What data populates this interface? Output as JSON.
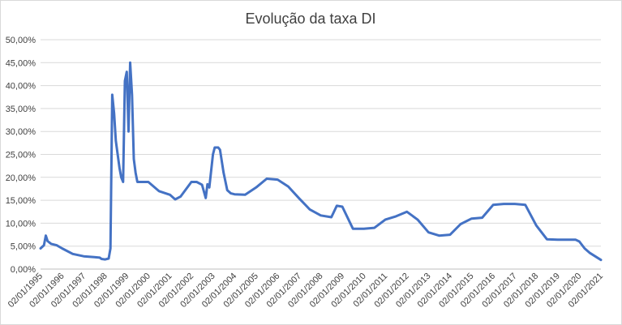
{
  "chart_data": {
    "type": "line",
    "title": "Evolução da taxa DI",
    "xlabel": "",
    "ylabel": "",
    "ylim": [
      0,
      0.5
    ],
    "yticks": [
      0,
      0.05,
      0.1,
      0.15,
      0.2,
      0.25,
      0.3,
      0.35,
      0.4,
      0.45,
      0.5
    ],
    "ytick_labels": [
      "0,00%",
      "5,00%",
      "10,00%",
      "15,00%",
      "20,00%",
      "25,00%",
      "30,00%",
      "35,00%",
      "40,00%",
      "45,00%",
      "50,00%"
    ],
    "xlim": [
      "1995-01-02",
      "2021-01-02"
    ],
    "x_tick_dates": [
      "1995-01-02",
      "1996-01-02",
      "1997-01-02",
      "1998-01-02",
      "1999-01-02",
      "2000-01-02",
      "2001-01-02",
      "2002-01-02",
      "2003-01-02",
      "2004-01-02",
      "2005-01-02",
      "2006-01-02",
      "2007-01-02",
      "2008-01-02",
      "2009-01-02",
      "2010-01-02",
      "2011-01-02",
      "2012-01-02",
      "2013-01-02",
      "2014-01-02",
      "2015-01-02",
      "2016-01-02",
      "2017-01-02",
      "2018-01-02",
      "2019-01-02",
      "2020-01-02",
      "2021-01-02"
    ],
    "x_tick_labels": [
      "02/01/1995",
      "02/01/1996",
      "02/01/1997",
      "02/01/1998",
      "02/01/1999",
      "02/01/2000",
      "02/01/2001",
      "02/01/2002",
      "02/01/2003",
      "02/01/2004",
      "02/01/2005",
      "02/01/2006",
      "02/01/2007",
      "02/01/2008",
      "02/01/2009",
      "02/01/2010",
      "02/01/2011",
      "02/01/2012",
      "02/01/2013",
      "02/01/2014",
      "02/01/2015",
      "02/01/2016",
      "02/01/2017",
      "02/01/2018",
      "02/01/2019",
      "02/01/2020",
      "02/01/2021"
    ],
    "grid": true,
    "series": [
      {
        "color": "#4472c4",
        "x": [
          "1995-01-02",
          "1995-03-01",
          "1995-04-01",
          "1995-05-01",
          "1995-06-01",
          "1995-07-01",
          "1995-10-01",
          "1996-01-02",
          "1996-07-01",
          "1997-01-02",
          "1997-07-01",
          "1997-10-01",
          "1997-11-01",
          "1998-01-02",
          "1998-03-01",
          "1998-04-01",
          "1998-05-01",
          "1998-06-01",
          "1998-07-01",
          "1998-09-01",
          "1998-10-01",
          "1998-11-01",
          "1998-12-01",
          "1999-01-02",
          "1999-02-01",
          "1999-03-01",
          "1999-04-01",
          "1999-05-01",
          "1999-06-01",
          "1999-07-01",
          "1999-10-01",
          "2000-01-02",
          "2000-07-01",
          "2001-01-02",
          "2001-04-01",
          "2001-07-01",
          "2002-01-02",
          "2002-04-01",
          "2002-07-01",
          "2002-09-01",
          "2002-10-01",
          "2002-11-01",
          "2003-01-02",
          "2003-02-01",
          "2003-04-01",
          "2003-05-01",
          "2003-07-01",
          "2003-09-01",
          "2003-11-01",
          "2004-01-02",
          "2004-07-01",
          "2005-01-02",
          "2005-07-01",
          "2006-01-02",
          "2006-07-01",
          "2007-01-02",
          "2007-07-01",
          "2008-01-02",
          "2008-07-01",
          "2008-10-01",
          "2009-01-02",
          "2009-07-01",
          "2010-01-02",
          "2010-07-01",
          "2011-01-02",
          "2011-07-01",
          "2012-01-02",
          "2012-07-01",
          "2013-01-02",
          "2013-07-01",
          "2014-01-02",
          "2014-07-01",
          "2015-01-02",
          "2015-07-01",
          "2016-01-02",
          "2016-07-01",
          "2017-01-02",
          "2017-07-01",
          "2018-01-02",
          "2018-07-01",
          "2019-01-02",
          "2019-07-01",
          "2019-11-01",
          "2020-01-02",
          "2020-04-01",
          "2020-07-01",
          "2021-01-02"
        ],
        "y": [
          0.045,
          0.052,
          0.073,
          0.061,
          0.058,
          0.055,
          0.052,
          0.045,
          0.033,
          0.028,
          0.026,
          0.025,
          0.022,
          0.021,
          0.023,
          0.045,
          0.38,
          0.34,
          0.28,
          0.22,
          0.2,
          0.19,
          0.41,
          0.43,
          0.3,
          0.45,
          0.38,
          0.24,
          0.21,
          0.19,
          0.19,
          0.19,
          0.17,
          0.162,
          0.152,
          0.158,
          0.19,
          0.19,
          0.184,
          0.155,
          0.185,
          0.178,
          0.25,
          0.265,
          0.265,
          0.26,
          0.21,
          0.172,
          0.165,
          0.163,
          0.162,
          0.178,
          0.197,
          0.195,
          0.18,
          0.154,
          0.13,
          0.117,
          0.113,
          0.138,
          0.136,
          0.088,
          0.088,
          0.09,
          0.108,
          0.115,
          0.125,
          0.108,
          0.08,
          0.073,
          0.075,
          0.098,
          0.11,
          0.112,
          0.14,
          0.142,
          0.142,
          0.14,
          0.095,
          0.065,
          0.064,
          0.064,
          0.064,
          0.06,
          0.045,
          0.035,
          0.02
        ]
      }
    ]
  }
}
